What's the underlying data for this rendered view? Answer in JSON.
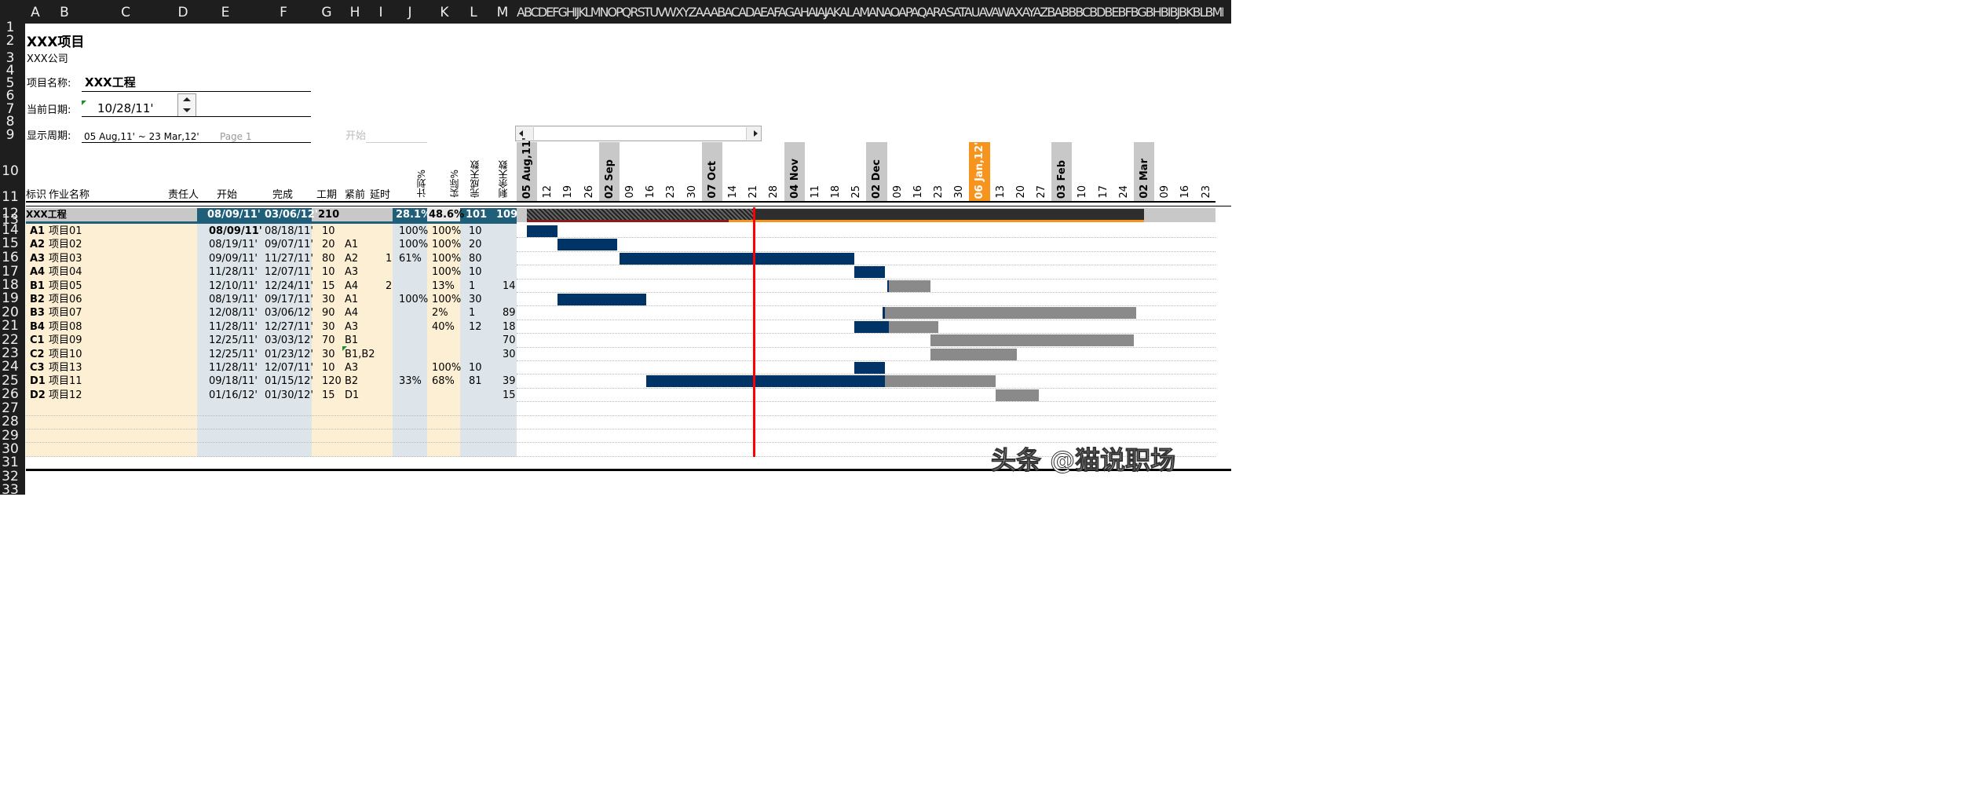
{
  "column_headers": [
    "A",
    "B",
    "C",
    "D",
    "E",
    "F",
    "G",
    "H",
    "I",
    "J",
    "K",
    "L",
    "M"
  ],
  "garbled_header_text": "ABCDEFGHIJKLMNOPQRSTUVWXYZAAABACADAEAFAGAHAIAJAKALAMANAOAPAQARASATAUAVAWAXAYAZBABBBCBDBEBFBGBHBIBJBKBLBMBNBOBPBQBRBSBTBUBVBWBXBYBZ",
  "row_numbers": [
    "1",
    "2",
    "3",
    "4",
    "5",
    "6",
    "7",
    "8",
    "9",
    "10",
    "11",
    "12",
    "13",
    "14",
    "15",
    "16",
    "17",
    "18",
    "19",
    "20",
    "21",
    "22",
    "23",
    "24",
    "25",
    "26",
    "27",
    "28",
    "29",
    "30",
    "31",
    "32",
    "33"
  ],
  "project": {
    "title": "XXX项目",
    "company": "XXX公司",
    "name_label": "项目名称:",
    "name_value": "XXX工程",
    "date_label": "当前日期:",
    "date_value": "10/28/11'",
    "period_label": "显示周期:",
    "period_value": "05 Aug,11' ~ 23 Mar,12'",
    "page_label": "Page 1",
    "start_label": "开始"
  },
  "table_headers": {
    "id": "标识",
    "name": "作业名称",
    "owner": "责任人",
    "start": "开始",
    "finish": "完成",
    "duration": "工期",
    "pred": "紧前",
    "delay": "延时",
    "plan_pct": "计划%",
    "actual_pct": "实际%",
    "done_days": "完成天数",
    "remain_days": "剩余天数"
  },
  "summary": {
    "name": "XXX工程",
    "start": "08/09/11'",
    "finish": "03/06/12'",
    "duration": "210",
    "plan_pct": "28.1%",
    "actual_pct": "48.6%",
    "done_days": "101",
    "remain_days": "109"
  },
  "tasks": [
    {
      "id": "A1",
      "name": "项目01",
      "start": "08/09/11'",
      "finish": "08/18/11'",
      "dur": "10",
      "pred": "",
      "delay": "",
      "plan": "100%",
      "actual": "100%",
      "done": "10",
      "remain": ""
    },
    {
      "id": "A2",
      "name": "项目02",
      "start": "08/19/11'",
      "finish": "09/07/11'",
      "dur": "20",
      "pred": "A1",
      "delay": "",
      "plan": "100%",
      "actual": "100%",
      "done": "20",
      "remain": ""
    },
    {
      "id": "A3",
      "name": "项目03",
      "start": "09/09/11'",
      "finish": "11/27/11'",
      "dur": "80",
      "pred": "A2",
      "delay": "1",
      "plan": "61%",
      "actual": "100%",
      "done": "80",
      "remain": ""
    },
    {
      "id": "A4",
      "name": "项目04",
      "start": "11/28/11'",
      "finish": "12/07/11'",
      "dur": "10",
      "pred": "A3",
      "delay": "",
      "plan": "",
      "actual": "100%",
      "done": "10",
      "remain": ""
    },
    {
      "id": "B1",
      "name": "项目05",
      "start": "12/10/11'",
      "finish": "12/24/11'",
      "dur": "15",
      "pred": "A4",
      "delay": "2",
      "plan": "",
      "actual": "13%",
      "done": "1",
      "remain": "14"
    },
    {
      "id": "B2",
      "name": "项目06",
      "start": "08/19/11'",
      "finish": "09/17/11'",
      "dur": "30",
      "pred": "A1",
      "delay": "",
      "plan": "100%",
      "actual": "100%",
      "done": "30",
      "remain": ""
    },
    {
      "id": "B3",
      "name": "项目07",
      "start": "12/08/11'",
      "finish": "03/06/12'",
      "dur": "90",
      "pred": "A4",
      "delay": "",
      "plan": "",
      "actual": "2%",
      "done": "1",
      "remain": "89"
    },
    {
      "id": "B4",
      "name": "项目08",
      "start": "11/28/11'",
      "finish": "12/27/11'",
      "dur": "30",
      "pred": "A3",
      "delay": "",
      "plan": "",
      "actual": "40%",
      "done": "12",
      "remain": "18"
    },
    {
      "id": "C1",
      "name": "项目09",
      "start": "12/25/11'",
      "finish": "03/03/12'",
      "dur": "70",
      "pred": "B1",
      "delay": "",
      "plan": "",
      "actual": "",
      "done": "",
      "remain": "70"
    },
    {
      "id": "C2",
      "name": "项目10",
      "start": "12/25/11'",
      "finish": "01/23/12'",
      "dur": "30",
      "pred": "B1,B2",
      "delay": "",
      "plan": "",
      "actual": "",
      "done": "",
      "remain": "30"
    },
    {
      "id": "C3",
      "name": "项目13",
      "start": "11/28/11'",
      "finish": "12/07/11'",
      "dur": "10",
      "pred": "A3",
      "delay": "",
      "plan": "",
      "actual": "100%",
      "done": "10",
      "remain": ""
    },
    {
      "id": "D1",
      "name": "项目11",
      "start": "09/18/11'",
      "finish": "01/15/12'",
      "dur": "120",
      "pred": "B2",
      "delay": "",
      "plan": "33%",
      "actual": "68%",
      "done": "81",
      "remain": "39"
    },
    {
      "id": "D2",
      "name": "项目12",
      "start": "01/16/12'",
      "finish": "01/30/12'",
      "dur": "15",
      "pred": "D1",
      "delay": "",
      "plan": "",
      "actual": "",
      "done": "",
      "remain": "15"
    }
  ],
  "timeline": {
    "days": [
      "05 Aug,11'",
      "12",
      "19",
      "26",
      "02 Sep",
      "09",
      "16",
      "23",
      "30",
      "07 Oct",
      "14",
      "21",
      "28",
      "04 Nov",
      "11",
      "18",
      "25",
      "02 Dec",
      "09",
      "16",
      "23",
      "30",
      "06 Jan,12'",
      "13",
      "20",
      "27",
      "03 Feb",
      "10",
      "17",
      "24",
      "02 Mar",
      "09",
      "16",
      "23"
    ],
    "month_starts": [
      0,
      4,
      9,
      13,
      17,
      22,
      26,
      30
    ],
    "current_week": 22
  },
  "gantt": {
    "summary_done_until_week": 11.5,
    "today_week": 11.5,
    "bars": [
      {
        "done": [
          0.5,
          2.0
        ],
        "remain": null
      },
      {
        "done": [
          2.0,
          4.9
        ],
        "remain": null
      },
      {
        "done": [
          5.0,
          16.4
        ],
        "remain": null
      },
      {
        "done": [
          16.4,
          17.9
        ],
        "remain": null
      },
      {
        "done": [
          18.0,
          18.1
        ],
        "remain": [
          18.1,
          20.1
        ]
      },
      {
        "done": [
          2.0,
          6.3
        ],
        "remain": null
      },
      {
        "done": [
          17.8,
          17.9
        ],
        "remain": [
          17.9,
          30.1
        ]
      },
      {
        "done": [
          16.4,
          18.1
        ],
        "remain": [
          18.1,
          20.5
        ]
      },
      {
        "done": null,
        "remain": [
          20.1,
          30.0
        ]
      },
      {
        "done": null,
        "remain": [
          20.1,
          24.3
        ]
      },
      {
        "done": [
          16.4,
          17.9
        ],
        "remain": null
      },
      {
        "done": [
          6.3,
          17.9
        ],
        "remain": [
          17.9,
          23.3
        ]
      },
      {
        "done": null,
        "remain": [
          23.3,
          25.4
        ]
      }
    ]
  },
  "colors": {
    "navy": "#003366",
    "gray": "#8a8a8a",
    "dark": "#2e2e2e",
    "orange": "#f7941d",
    "red": "#ff0000",
    "peach": "#fdefd3",
    "bluegray": "#dde5ea",
    "teal": "#1f5f7a"
  },
  "watermark": "头条 @猫说职场"
}
